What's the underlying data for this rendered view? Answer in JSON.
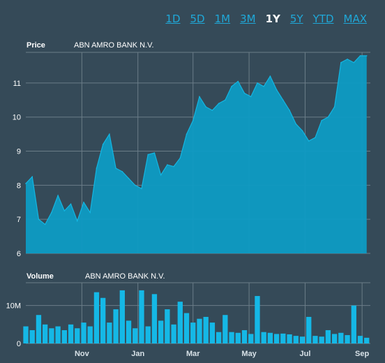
{
  "range_tabs": {
    "items": [
      {
        "label": "1D"
      },
      {
        "label": "5D"
      },
      {
        "label": "1M"
      },
      {
        "label": "3M"
      },
      {
        "label": "1Y"
      },
      {
        "label": "5Y"
      },
      {
        "label": "YTD"
      },
      {
        "label": "MAX"
      }
    ],
    "active": "1Y"
  },
  "colors": {
    "background": "#354a58",
    "area_fill": "#0e9bc4",
    "area_line": "#14b6e2",
    "volume_fill": "#15b8e6",
    "grid": "#6b7d88",
    "tab_link": "#1fa8d8"
  },
  "chart_data": [
    {
      "type": "area",
      "title": "Price",
      "subtitle": "ABN AMRO BANK N.V.",
      "ylim": [
        6,
        11.9
      ],
      "yticks": [
        6,
        7,
        8,
        9,
        10,
        11
      ],
      "x": [
        "2015-09-01",
        "2015-09-08",
        "2015-09-15",
        "2015-09-22",
        "2015-09-29",
        "2015-10-06",
        "2015-10-13",
        "2015-10-20",
        "2015-10-27",
        "2015-11-03",
        "2015-11-10",
        "2015-11-17",
        "2015-11-24",
        "2015-12-01",
        "2015-12-08",
        "2015-12-15",
        "2015-12-22",
        "2015-12-29",
        "2016-01-05",
        "2016-01-12",
        "2016-01-19",
        "2016-01-26",
        "2016-02-02",
        "2016-02-09",
        "2016-02-16",
        "2016-02-23",
        "2016-03-01",
        "2016-03-08",
        "2016-03-15",
        "2016-03-22",
        "2016-03-29",
        "2016-04-05",
        "2016-04-12",
        "2016-04-19",
        "2016-04-26",
        "2016-05-03",
        "2016-05-10",
        "2016-05-17",
        "2016-05-24",
        "2016-05-31",
        "2016-06-07",
        "2016-06-14",
        "2016-06-21",
        "2016-06-28",
        "2016-07-05",
        "2016-07-12",
        "2016-07-19",
        "2016-07-26",
        "2016-08-02",
        "2016-08-09",
        "2016-08-16",
        "2016-08-23",
        "2016-08-30",
        "2016-09-06"
      ],
      "values": [
        8.05,
        8.25,
        7.0,
        6.85,
        7.2,
        7.7,
        7.25,
        7.45,
        6.95,
        7.5,
        7.2,
        8.5,
        9.2,
        9.5,
        8.5,
        8.4,
        8.2,
        8.0,
        7.9,
        8.9,
        8.95,
        8.3,
        8.6,
        8.55,
        8.8,
        9.5,
        9.9,
        10.6,
        10.3,
        10.2,
        10.4,
        10.5,
        10.9,
        11.05,
        10.7,
        10.6,
        11.0,
        10.9,
        11.2,
        10.8,
        10.5,
        10.2,
        9.8,
        9.6,
        9.3,
        9.4,
        9.9,
        10.0,
        10.3,
        11.6,
        11.7,
        11.6,
        11.8,
        11.8
      ],
      "xticks": [
        {
          "date": "2015-11-01",
          "label": "Nov"
        },
        {
          "date": "2016-01-01",
          "label": "Jan"
        },
        {
          "date": "2016-03-01",
          "label": "Mar"
        },
        {
          "date": "2016-05-01",
          "label": "May"
        },
        {
          "date": "2016-07-01",
          "label": "Jul"
        },
        {
          "date": "2016-09-01",
          "label": "Sep"
        }
      ],
      "grid": true
    },
    {
      "type": "bar",
      "title": "Volume",
      "subtitle": "ABN AMRO BANK N.V.",
      "ylim": [
        0,
        16000000
      ],
      "yticks": [
        {
          "value": 0,
          "label": "0"
        },
        {
          "value": 10000000,
          "label": "10M"
        }
      ],
      "x": [
        "2015-09-01",
        "2015-09-08",
        "2015-09-15",
        "2015-09-22",
        "2015-09-29",
        "2015-10-06",
        "2015-10-13",
        "2015-10-20",
        "2015-10-27",
        "2015-11-03",
        "2015-11-10",
        "2015-11-17",
        "2015-11-24",
        "2015-12-01",
        "2015-12-08",
        "2015-12-15",
        "2015-12-22",
        "2015-12-29",
        "2016-01-05",
        "2016-01-12",
        "2016-01-19",
        "2016-01-26",
        "2016-02-02",
        "2016-02-09",
        "2016-02-16",
        "2016-02-23",
        "2016-03-01",
        "2016-03-08",
        "2016-03-15",
        "2016-03-22",
        "2016-03-29",
        "2016-04-05",
        "2016-04-12",
        "2016-04-19",
        "2016-04-26",
        "2016-05-03",
        "2016-05-10",
        "2016-05-17",
        "2016-05-24",
        "2016-05-31",
        "2016-06-07",
        "2016-06-14",
        "2016-06-21",
        "2016-06-28",
        "2016-07-05",
        "2016-07-12",
        "2016-07-19",
        "2016-07-26",
        "2016-08-02",
        "2016-08-09",
        "2016-08-16",
        "2016-08-23",
        "2016-08-30",
        "2016-09-06"
      ],
      "values": [
        4500000,
        3500000,
        7500000,
        5000000,
        4000000,
        4500000,
        3500000,
        5000000,
        4000000,
        5500000,
        4500000,
        13500000,
        12000000,
        5500000,
        9000000,
        14000000,
        6000000,
        4000000,
        14000000,
        4500000,
        13000000,
        6000000,
        9000000,
        5000000,
        11000000,
        8000000,
        5500000,
        6500000,
        7000000,
        5500000,
        3000000,
        7500000,
        3000000,
        2800000,
        3500000,
        2500000,
        12500000,
        3000000,
        2800000,
        2500000,
        2600000,
        2400000,
        2000000,
        1800000,
        7000000,
        2000000,
        1800000,
        3500000,
        2500000,
        2800000,
        2200000,
        10000000,
        2000000,
        1500000
      ],
      "xticks": [
        {
          "date": "2015-11-01",
          "label": "Nov"
        },
        {
          "date": "2016-01-01",
          "label": "Jan"
        },
        {
          "date": "2016-03-01",
          "label": "Mar"
        },
        {
          "date": "2016-05-01",
          "label": "May"
        },
        {
          "date": "2016-07-01",
          "label": "Jul"
        },
        {
          "date": "2016-09-01",
          "label": "Sep"
        }
      ],
      "grid": true
    }
  ]
}
